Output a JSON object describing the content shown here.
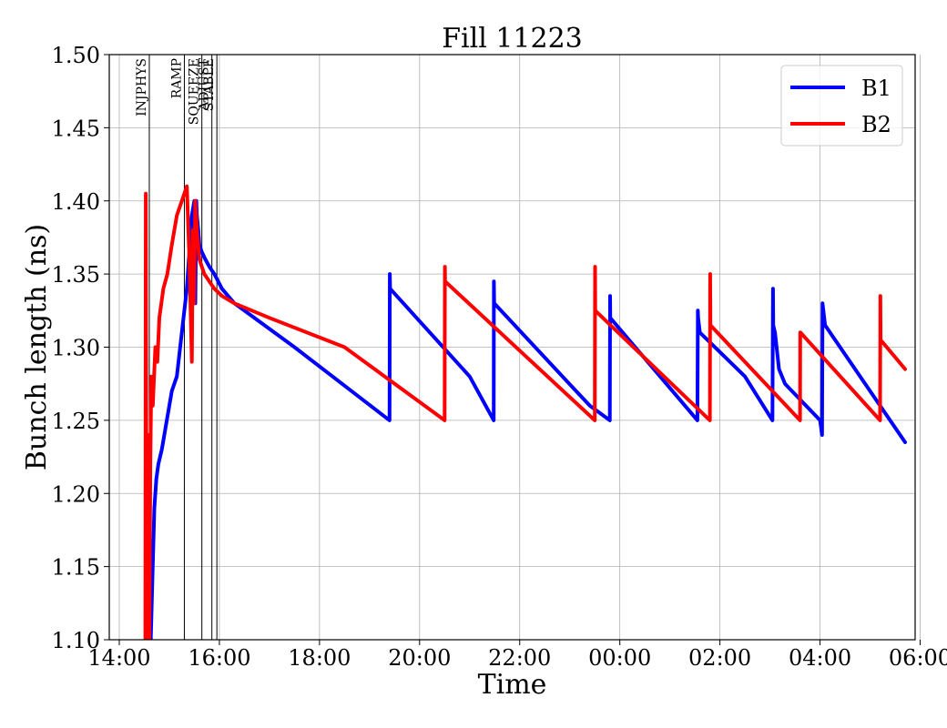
{
  "chart_data": {
    "type": "line",
    "title": "Fill 11223",
    "xlabel": "Time",
    "ylabel": "Bunch length (ns)",
    "x_unit": "hours since 14:00 (time of day, wraps past midnight)",
    "xlim": [
      -0.2,
      15.9
    ],
    "ylim": [
      1.1,
      1.5
    ],
    "xticks": [
      {
        "value": 0,
        "label": "14:00"
      },
      {
        "value": 2,
        "label": "16:00"
      },
      {
        "value": 4,
        "label": "18:00"
      },
      {
        "value": 6,
        "label": "20:00"
      },
      {
        "value": 8,
        "label": "22:00"
      },
      {
        "value": 10,
        "label": "00:00"
      },
      {
        "value": 12,
        "label": "02:00"
      },
      {
        "value": 14,
        "label": "04:00"
      },
      {
        "value": 16,
        "label": "06:00"
      }
    ],
    "yticks": [
      {
        "value": 1.1,
        "label": "1.10"
      },
      {
        "value": 1.15,
        "label": "1.15"
      },
      {
        "value": 1.2,
        "label": "1.20"
      },
      {
        "value": 1.25,
        "label": "1.25"
      },
      {
        "value": 1.3,
        "label": "1.30"
      },
      {
        "value": 1.35,
        "label": "1.35"
      },
      {
        "value": 1.4,
        "label": "1.40"
      },
      {
        "value": 1.45,
        "label": "1.45"
      },
      {
        "value": 1.5,
        "label": "1.50"
      }
    ],
    "grid": true,
    "legend_position": "top-right",
    "phase_markers": [
      {
        "label": "INJPHYS",
        "x": 0.6
      },
      {
        "label": "RAMP",
        "x": 1.3
      },
      {
        "label": "SQUEEZE",
        "x": 1.65
      },
      {
        "label": "ADJUST",
        "x": 1.85
      },
      {
        "label": "STABLE",
        "x": 1.95
      }
    ],
    "series": [
      {
        "name": "B1",
        "color": "#0000ff",
        "x": [
          0.58,
          0.6,
          0.63,
          0.66,
          0.7,
          0.74,
          0.78,
          0.85,
          0.95,
          1.05,
          1.15,
          1.25,
          1.35,
          1.45,
          1.5,
          1.52,
          1.54,
          1.55,
          1.58,
          1.6,
          1.65,
          1.72,
          1.8,
          1.9,
          2.05,
          2.3,
          3.5,
          5.4,
          5.405,
          5.41,
          7.0,
          7.48,
          7.485,
          7.49,
          9.4,
          9.8,
          9.805,
          9.81,
          11.55,
          11.56,
          11.565,
          11.6,
          12.5,
          13.05,
          13.06,
          13.065,
          13.1,
          13.18,
          13.3,
          14.0,
          14.04,
          14.05,
          14.1,
          15.7
        ],
        "y": [
          1.1,
          1.12,
          1.1,
          1.14,
          1.19,
          1.21,
          1.22,
          1.23,
          1.25,
          1.27,
          1.28,
          1.31,
          1.34,
          1.39,
          1.4,
          1.33,
          1.4,
          1.39,
          1.38,
          1.37,
          1.365,
          1.36,
          1.355,
          1.35,
          1.34,
          1.33,
          1.3,
          1.25,
          1.35,
          1.34,
          1.28,
          1.25,
          1.345,
          1.33,
          1.26,
          1.25,
          1.335,
          1.32,
          1.25,
          1.325,
          1.32,
          1.31,
          1.28,
          1.25,
          1.34,
          1.315,
          1.31,
          1.285,
          1.275,
          1.25,
          1.24,
          1.33,
          1.315,
          1.235
        ]
      },
      {
        "name": "B2",
        "color": "#ff0000",
        "x": [
          0.52,
          0.53,
          0.55,
          0.58,
          0.6,
          0.62,
          0.64,
          0.67,
          0.72,
          0.76,
          0.8,
          0.88,
          0.96,
          1.05,
          1.15,
          1.25,
          1.35,
          1.4,
          1.45,
          1.47,
          1.49,
          1.52,
          1.55,
          1.6,
          1.7,
          1.8,
          1.9,
          2.05,
          2.3,
          3.0,
          4.5,
          6.5,
          6.505,
          6.51,
          9.5,
          9.505,
          9.51,
          11.8,
          11.805,
          11.81,
          13.6,
          13.605,
          13.61,
          15.2,
          15.205,
          15.21,
          15.7
        ],
        "y": [
          1.1,
          1.405,
          1.1,
          1.24,
          1.1,
          1.22,
          1.28,
          1.26,
          1.3,
          1.29,
          1.32,
          1.34,
          1.35,
          1.37,
          1.39,
          1.4,
          1.41,
          1.36,
          1.29,
          1.38,
          1.33,
          1.4,
          1.38,
          1.36,
          1.35,
          1.345,
          1.34,
          1.335,
          1.33,
          1.32,
          1.3,
          1.25,
          1.355,
          1.345,
          1.25,
          1.355,
          1.325,
          1.25,
          1.35,
          1.315,
          1.25,
          1.31,
          1.31,
          1.25,
          1.335,
          1.305,
          1.285
        ]
      }
    ]
  }
}
